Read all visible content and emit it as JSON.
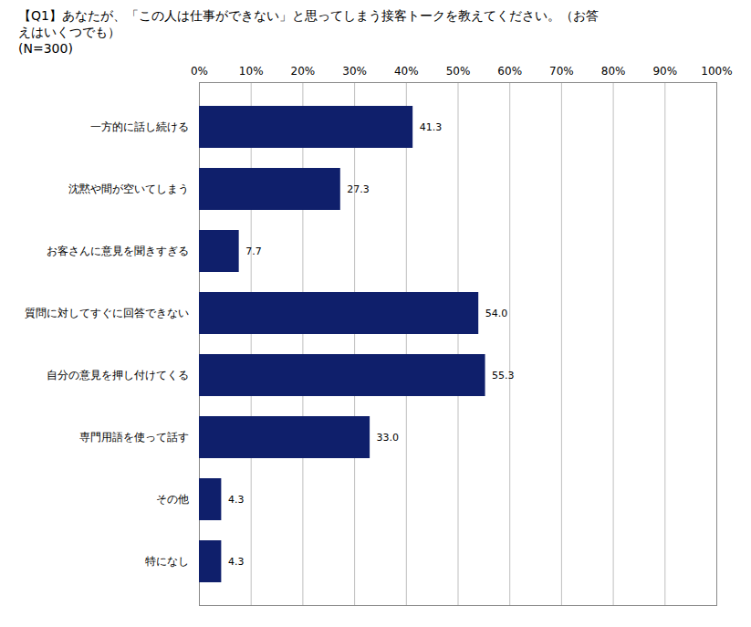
{
  "chart_data": {
    "type": "bar",
    "title": "【Q1】あなたが、「この人は仕事ができない」と思ってしまう接客トークを教えてください。（お答えはいくつでも）",
    "subtitle": "(N=300)",
    "orientation": "horizontal",
    "categories": [
      "一方的に話し続ける",
      "沈黙や間が空いてしまう",
      "お客さんに意見を聞きすぎる",
      "質問に対してすぐに回答できない",
      "自分の意見を押し付けてくる",
      "専門用語を使って話す",
      "その他",
      "特になし"
    ],
    "values": [
      41.3,
      27.3,
      7.7,
      54.0,
      55.3,
      33.0,
      4.3,
      4.3
    ],
    "value_labels": [
      "41.3",
      "27.3",
      "7.7",
      "54.0",
      "55.3",
      "33.0",
      "4.3",
      "4.3"
    ],
    "data_labels": true,
    "color": "#0f1f6b",
    "xlim": [
      0,
      100
    ],
    "xticks": [
      {
        "value": 0,
        "label": "0%"
      },
      {
        "value": 10,
        "label": "10%"
      },
      {
        "value": 20,
        "label": "20%"
      },
      {
        "value": 30,
        "label": "30%"
      },
      {
        "value": 40,
        "label": "40%"
      },
      {
        "value": 50,
        "label": "50%"
      },
      {
        "value": 60,
        "label": "60%"
      },
      {
        "value": 70,
        "label": "70%"
      },
      {
        "value": 80,
        "label": "80%"
      },
      {
        "value": 90,
        "label": "90%"
      },
      {
        "value": 100,
        "label": "100%"
      }
    ],
    "grid": true
  }
}
